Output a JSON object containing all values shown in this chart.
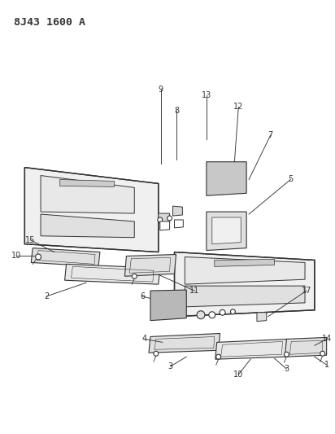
{
  "title": "8J43 1600 A",
  "bg_color": "#ffffff",
  "fig_width": 4.12,
  "fig_height": 5.33,
  "dpi": 100,
  "line_color": "#333333",
  "label_fontsize": 7.0,
  "title_fontsize": 9.5
}
